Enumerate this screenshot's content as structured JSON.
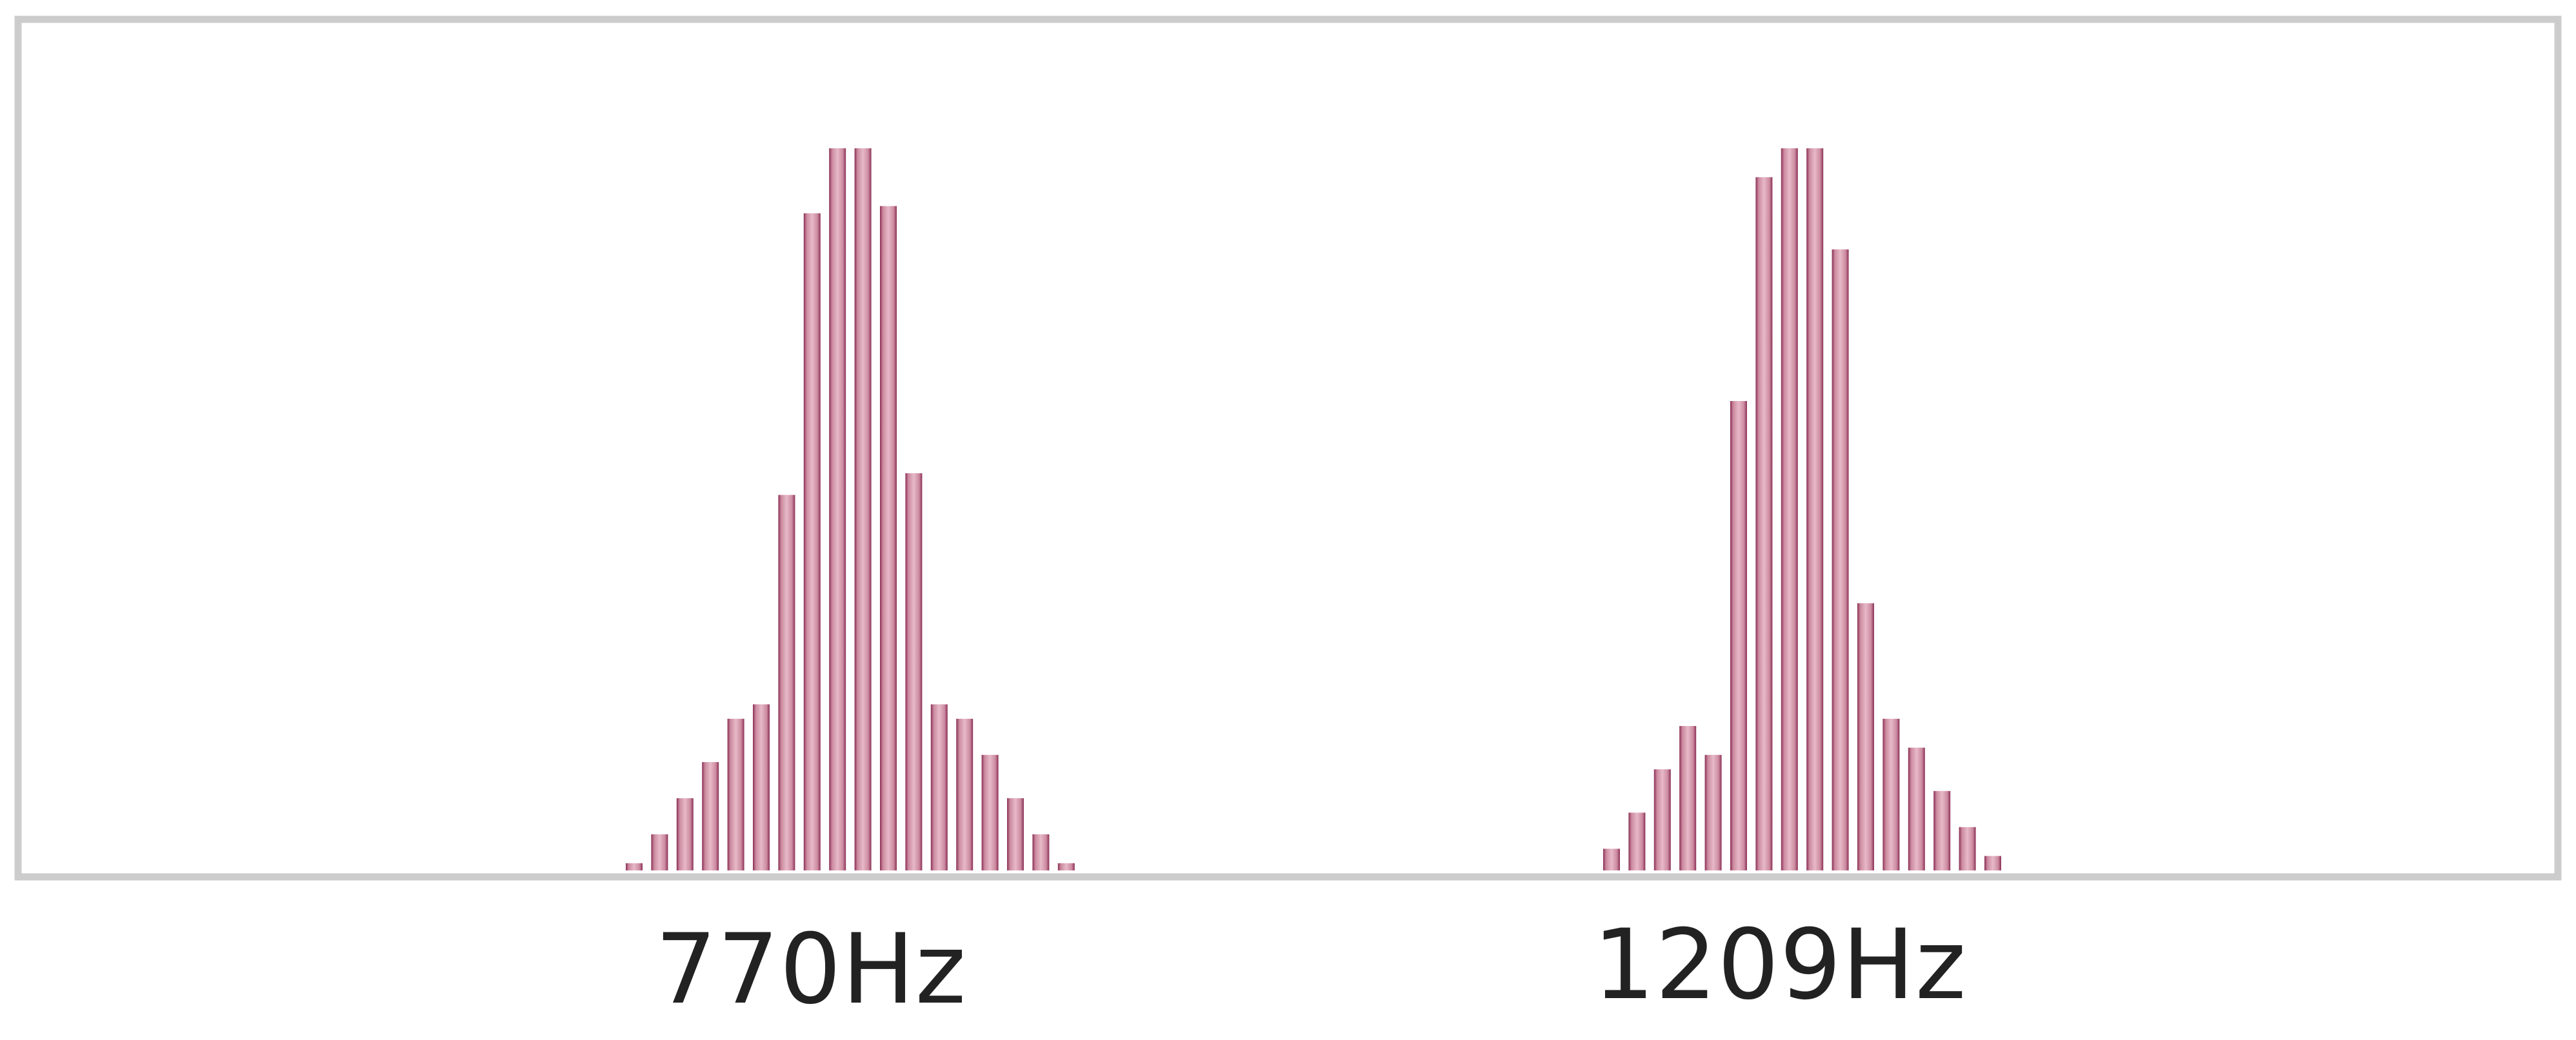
{
  "chart_data": {
    "type": "bar",
    "title": "",
    "xlabel": "",
    "ylabel": "",
    "ylim": [
      0,
      1
    ],
    "grid": false,
    "legend": "none",
    "tick_labels": [
      "770Hz",
      "1209Hz"
    ],
    "series": [
      {
        "values": [
          0.01,
          0.05,
          0.1,
          0.15,
          0.21,
          0.23,
          0.52,
          0.91,
          1.0,
          1.0,
          0.92,
          0.55,
          0.23,
          0.21,
          0.16,
          0.1,
          0.05,
          0.01
        ]
      },
      {
        "values": [
          0.03,
          0.08,
          0.14,
          0.2,
          0.16,
          0.65,
          0.96,
          1.0,
          1.0,
          0.86,
          0.37,
          0.21,
          0.17,
          0.11,
          0.06,
          0.02
        ]
      }
    ],
    "colors": {
      "bar_fill": "#cc8a9f",
      "bar_edge": "#8a2f55",
      "frame": "#cccccc"
    }
  }
}
